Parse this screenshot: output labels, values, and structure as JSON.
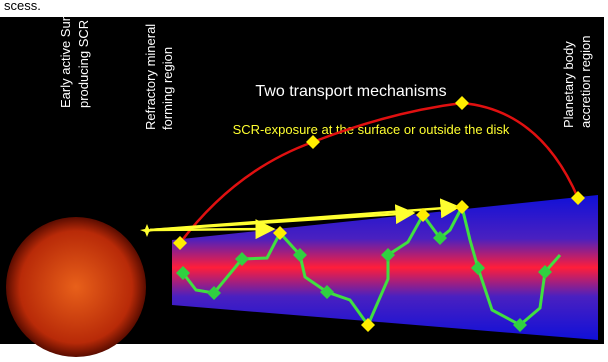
{
  "fragment": "scess.",
  "labels": {
    "sun": [
      "Early active Sun",
      "producing SCR"
    ],
    "refractory": [
      "Refractory mineral",
      "forming region"
    ],
    "planetary": [
      "Planetary body",
      "accretion region"
    ]
  },
  "title": "Two transport mechanisms",
  "exposure": "SCR-exposure at the surface or outside the disk"
}
